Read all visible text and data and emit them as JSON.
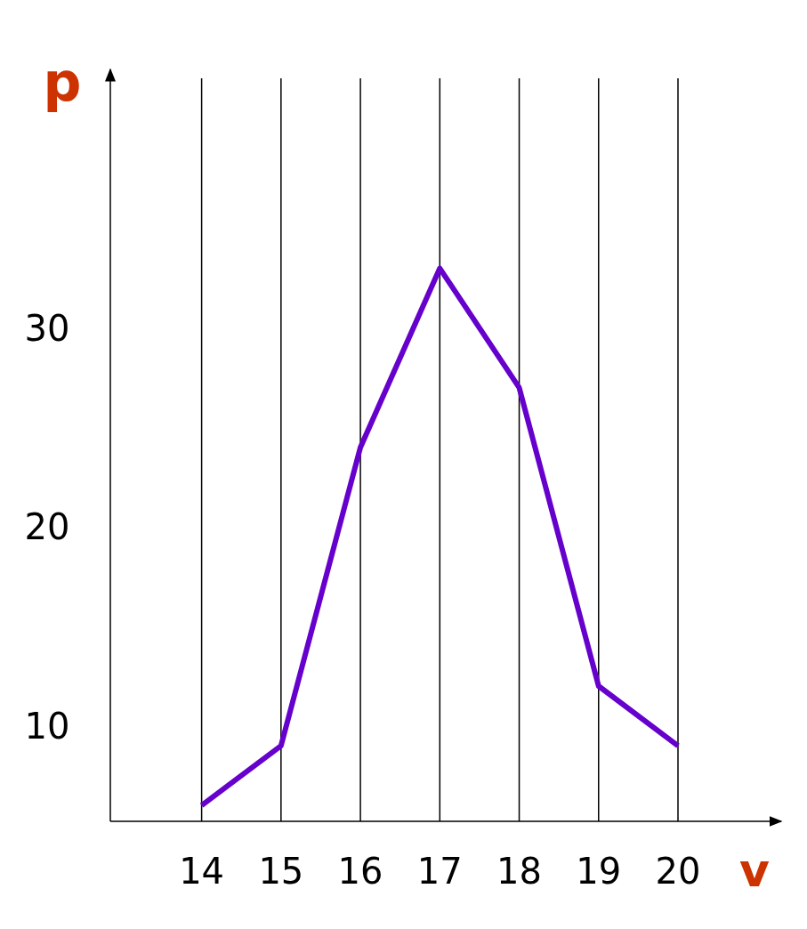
{
  "chart_data": {
    "type": "line",
    "xlabel": "v",
    "ylabel": "p",
    "categories": [
      "14",
      "15",
      "16",
      "17",
      "18",
      "19",
      "20"
    ],
    "series": [
      {
        "color": "#6600cc",
        "values": [
          6,
          9,
          24,
          33,
          27,
          12,
          9
        ]
      }
    ],
    "ylim": [
      5.2,
      43
    ],
    "yticks": [
      10,
      20,
      30
    ],
    "grid": "x",
    "tick_labels": "xy",
    "marker": "none",
    "line_style": "solid"
  }
}
